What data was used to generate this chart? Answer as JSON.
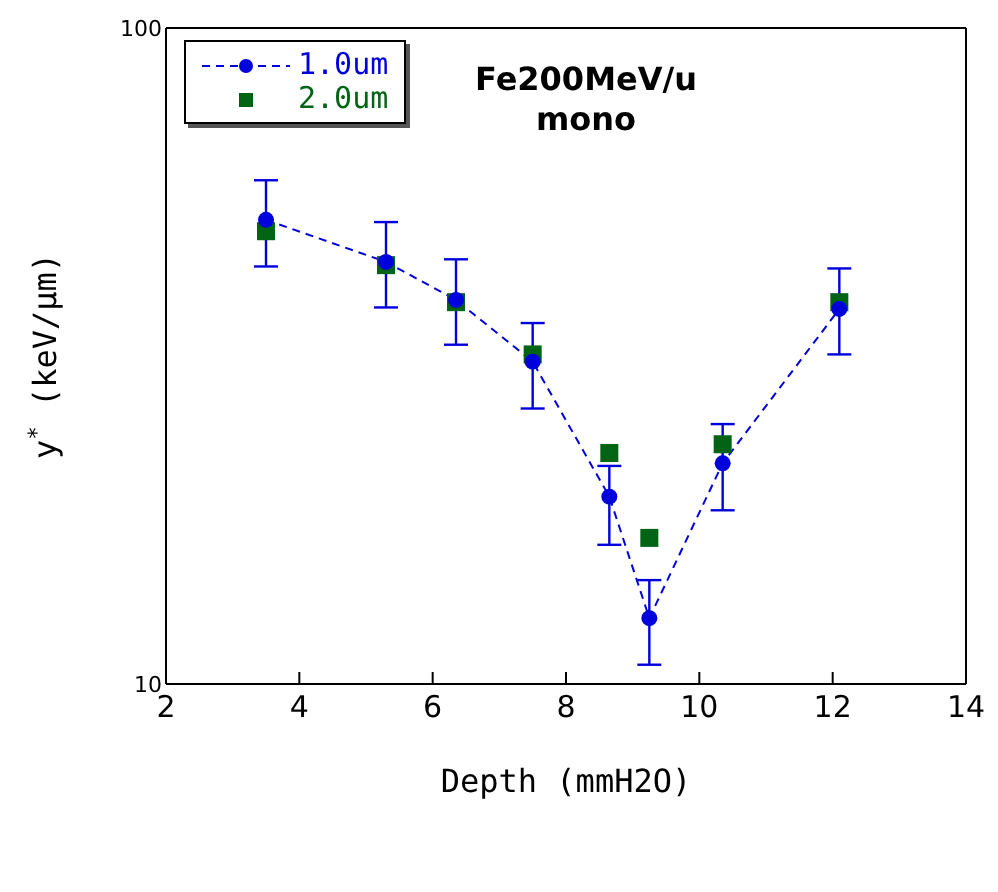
{
  "chart_data": {
    "type": "line",
    "annotations": [
      "Fe200MeV/u",
      "mono"
    ],
    "xlabel": "Depth (mmH2O)",
    "ylabel": "y$^{*}$ (keV/μm)",
    "log": "y",
    "xlim": [
      2,
      14
    ],
    "xticks": [
      2,
      4,
      6,
      8,
      10,
      12,
      14
    ],
    "ylim": [
      10,
      100
    ],
    "yticks": [
      10,
      100
    ],
    "legend": "top left",
    "series": [
      {
        "name": "1.0um",
        "type": "line",
        "color": "#0000dd",
        "marker": "circle",
        "line_style": "dashed",
        "x": [
          3.5,
          5.3,
          6.35,
          7.5,
          8.65,
          9.25,
          10.35,
          12.1
        ],
        "values": [
          51,
          44,
          38.5,
          31,
          19.3,
          12.6,
          21.7,
          37.3
        ],
        "errors": [
          [
            43.3,
            58.6
          ],
          [
            37.5,
            50.6
          ],
          [
            32.9,
            44.4
          ],
          [
            26.3,
            35.5
          ],
          [
            16.3,
            21.5
          ],
          [
            10.7,
            14.4
          ],
          [
            18.4,
            24.9
          ],
          [
            31.8,
            43
          ]
        ]
      },
      {
        "name": "2.0um",
        "type": "scatter",
        "color": "#006414",
        "marker": "square",
        "x": [
          3.5,
          5.3,
          6.35,
          7.5,
          8.65,
          9.25,
          10.35,
          12.1
        ],
        "values": [
          49,
          43.5,
          38.2,
          31.8,
          22.5,
          16.7,
          23.2,
          38.2
        ]
      }
    ]
  }
}
